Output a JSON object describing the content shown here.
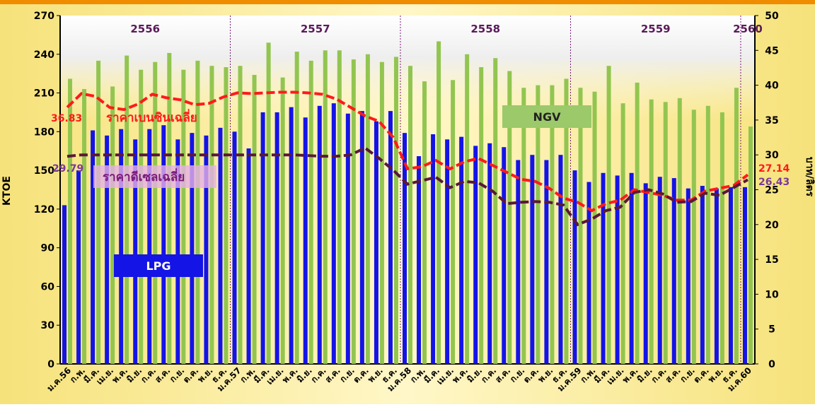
{
  "chart_data": {
    "type": "bar_line",
    "y_label": "KTOE",
    "y2_label": "บาท/ลิตร",
    "year_groups": [
      "2556",
      "2557",
      "2558",
      "2559",
      "2560"
    ],
    "categories": [
      "ม.ค.56",
      "ก.พ.",
      "มี.ค.",
      "เม.ย.",
      "พ.ค.",
      "มิ.ย.",
      "ก.ค.",
      "ส.ค.",
      "ก.ย.",
      "ต.ค.",
      "พ.ย.",
      "ธ.ค.",
      "ม.ค.57",
      "ก.พ.",
      "มี.ค.",
      "เม.ย.",
      "พ.ค.",
      "มิ.ย.",
      "ก.ค.",
      "ส.ค.",
      "ก.ย.",
      "ต.ค.",
      "พ.ย.",
      "ธ.ค.",
      "ม.ค.58",
      "ก.พ.",
      "มี.ค.",
      "เม.ย.",
      "พ.ค.",
      "มิ.ย.",
      "ก.ค.",
      "ส.ค.",
      "ก.ย.",
      "ต.ค.",
      "พ.ย.",
      "ธ.ค.",
      "ม.ค.59",
      "ก.พ.",
      "มี.ค.",
      "เม.ย.",
      "พ.ค.",
      "มิ.ย.",
      "ก.ค.",
      "ส.ค.",
      "ก.ย.",
      "ต.ค.",
      "พ.ย.",
      "ธ.ค.",
      "ม.ค.60"
    ],
    "series": [
      {
        "name": "LPG",
        "kind": "bar",
        "color": "#1414e6",
        "values": [
          123,
          150,
          181,
          177,
          182,
          174,
          182,
          185,
          174,
          179,
          177,
          183,
          180,
          167,
          195,
          195,
          199,
          191,
          200,
          202,
          194,
          196,
          188,
          196,
          179,
          161,
          178,
          174,
          176,
          169,
          171,
          168,
          158,
          162,
          158,
          162,
          150,
          141,
          148,
          146,
          148,
          140,
          145,
          144,
          136,
          138,
          136,
          137,
          137
        ]
      },
      {
        "name": "NGV",
        "kind": "bar",
        "color": "#92c550",
        "values": [
          221,
          213,
          235,
          215,
          239,
          228,
          234,
          241,
          228,
          235,
          231,
          230,
          231,
          224,
          249,
          222,
          242,
          235,
          243,
          243,
          236,
          240,
          234,
          238,
          231,
          219,
          250,
          220,
          240,
          230,
          237,
          227,
          214,
          216,
          216,
          221,
          214,
          211,
          231,
          202,
          218,
          205,
          203,
          206,
          197,
          200,
          195,
          214,
          184
        ]
      },
      {
        "name": "ราคาเบนซินเฉลี่ย",
        "kind": "line",
        "axis": "y2",
        "color": "#ff1a1a",
        "values": [
          36.83,
          38.8,
          38.4,
          36.8,
          36.5,
          37.3,
          38.7,
          38.2,
          37.9,
          37.2,
          37.4,
          38.3,
          38.9,
          38.8,
          38.9,
          39.0,
          39.0,
          38.9,
          38.7,
          38.0,
          36.8,
          35.6,
          34.8,
          32.5,
          28.0,
          28.3,
          29.2,
          28.0,
          29.0,
          29.5,
          28.5,
          27.5,
          26.5,
          26.2,
          25.2,
          23.8,
          23.2,
          22.0,
          23.0,
          23.5,
          25.0,
          24.6,
          24.2,
          23.5,
          23.5,
          24.8,
          25.2,
          25.6,
          27.14
        ]
      },
      {
        "name": "ราคาดีเซลเฉลี่ย",
        "kind": "line",
        "axis": "y2",
        "color": "#5a1838",
        "values": [
          29.79,
          30.0,
          30.0,
          30.0,
          30.0,
          30.0,
          30.0,
          30.0,
          30.0,
          30.0,
          30.0,
          30.0,
          30.0,
          30.0,
          30.0,
          30.0,
          30.0,
          29.9,
          29.8,
          29.8,
          30.0,
          31.0,
          29.5,
          27.8,
          25.8,
          26.3,
          26.8,
          25.3,
          26.2,
          26.0,
          24.8,
          23.0,
          23.2,
          23.3,
          23.2,
          22.8,
          20.0,
          20.8,
          22.0,
          22.5,
          24.6,
          25.0,
          24.4,
          23.2,
          23.3,
          24.5,
          24.2,
          25.3,
          26.43
        ]
      }
    ],
    "ylim": [
      0,
      270
    ],
    "yticks": [
      0,
      30,
      60,
      90,
      120,
      150,
      180,
      210,
      240,
      270
    ],
    "y2lim": [
      0,
      50
    ],
    "y2ticks": [
      0,
      5,
      10,
      15,
      20,
      25,
      30,
      35,
      40,
      45,
      50
    ]
  }
}
